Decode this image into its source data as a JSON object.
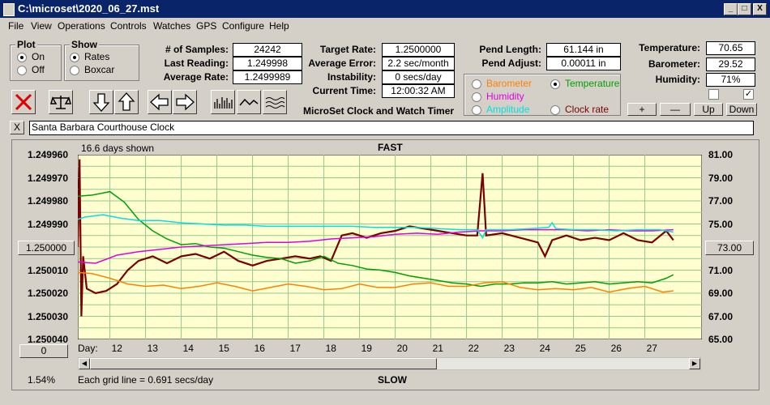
{
  "window": {
    "title": "C:\\microset\\2020_06_27.mst",
    "min": "_",
    "max": "□",
    "close": "X"
  },
  "menu": [
    "File",
    "View",
    "Operations",
    "Controls",
    "Watches",
    "GPS",
    "Configure",
    "Help"
  ],
  "plot_group": {
    "title": "Plot",
    "on": "On",
    "off": "Off",
    "selected": "On"
  },
  "show_group": {
    "title": "Show",
    "rates": "Rates",
    "boxcar": "Boxcar",
    "selected": "Rates"
  },
  "stats": {
    "samples_label": "# of Samples:",
    "samples": "24242",
    "last_label": "Last Reading:",
    "last": "1.249998",
    "avg_label": "Average Rate:",
    "avg": "1.2499989",
    "target_label": "Target Rate:",
    "target": "1.2500000",
    "err_label": "Average Error:",
    "err": "2.2 sec/month",
    "inst_label": "Instability:",
    "inst": "0 secs/day",
    "time_label": "Current Time:",
    "time": "12:00:32 AM",
    "app_name": "MicroSet Clock and Watch Timer",
    "pend_len_label": "Pend Length:",
    "pend_len": "61.144 in",
    "pend_adj_label": "Pend Adjust:",
    "pend_adj": "0.00011 in",
    "temp_label": "Temperature:",
    "temp": "70.65",
    "baro_label": "Barometer:",
    "baro": "29.52",
    "hum_label": "Humidity:",
    "hum": "71%"
  },
  "overlay_options": {
    "barometer": "Barometer",
    "temperature": "Temperature",
    "humidity": "Humidity",
    "amplitude": "Amplitude",
    "clock_rate": "Clock rate",
    "selected": "Temperature"
  },
  "adjust_buttons": {
    "plus": "+",
    "minus": "—",
    "up": "Up",
    "down": "Down"
  },
  "checkboxes": {
    "left": "",
    "right": "✓"
  },
  "description": {
    "close": "X",
    "text": "Santa Barbara Courthouse Clock"
  },
  "colors": {
    "barometer": "#ff8000",
    "temperature": "#00a000",
    "humidity": "#e000e0",
    "amplitude": "#00e0e0",
    "rate": "#7a0000",
    "plot_bg": "#ffffd0",
    "grid": "#90c890"
  },
  "chart_data": {
    "type": "line",
    "top_label": "FAST",
    "bottom_label": "SLOW",
    "days_shown": "16.6 days shown",
    "grid_note": "Each grid line = 0.691 secs/day",
    "percent": "1.54%",
    "zero_button": "0",
    "left_center_button": "1.250000",
    "right_center_button": "73.00",
    "x_prefix": "Day:",
    "x_days": [
      "12",
      "13",
      "14",
      "15",
      "16",
      "17",
      "18",
      "19",
      "20",
      "21",
      "22",
      "23",
      "24",
      "25",
      "26",
      "27"
    ],
    "left_axis": {
      "ticks": [
        "1.249960",
        "1.249970",
        "1.249980",
        "1.249990",
        "1.250000",
        "1.250010",
        "1.250020",
        "1.250030",
        "1.250040"
      ],
      "min": 1.24996,
      "max": 1.25004
    },
    "right_axis": {
      "ticks": [
        "81.00",
        "79.00",
        "77.00",
        "75.00",
        "73.00",
        "71.00",
        "69.00",
        "67.00",
        "65.00"
      ],
      "min": 65,
      "max": 81
    },
    "x_range": [
      11.1,
      28.6
    ],
    "series": [
      {
        "key": "rate",
        "points": [
          [
            11.1,
            1.25
          ],
          [
            11.15,
            1.249962
          ],
          [
            11.2,
            1.25003
          ],
          [
            11.25,
            1.250004
          ],
          [
            11.35,
            1.250018
          ],
          [
            11.6,
            1.25002
          ],
          [
            11.9,
            1.250019
          ],
          [
            12.2,
            1.250016
          ],
          [
            12.5,
            1.25001
          ],
          [
            12.8,
            1.250006
          ],
          [
            13.2,
            1.250004
          ],
          [
            13.6,
            1.250007
          ],
          [
            14.0,
            1.250004
          ],
          [
            14.4,
            1.250003
          ],
          [
            14.8,
            1.250005
          ],
          [
            15.2,
            1.250002
          ],
          [
            15.6,
            1.250006
          ],
          [
            16.0,
            1.250008
          ],
          [
            16.4,
            1.250006
          ],
          [
            16.8,
            1.250005
          ],
          [
            17.2,
            1.250004
          ],
          [
            17.6,
            1.250005
          ],
          [
            17.9,
            1.250004
          ],
          [
            18.2,
            1.250006
          ],
          [
            18.5,
            1.249995
          ],
          [
            18.8,
            1.249994
          ],
          [
            19.2,
            1.249996
          ],
          [
            19.6,
            1.249994
          ],
          [
            20.0,
            1.249993
          ],
          [
            20.4,
            1.249991
          ],
          [
            20.8,
            1.249992
          ],
          [
            21.2,
            1.249993
          ],
          [
            21.6,
            1.249994
          ],
          [
            22.0,
            1.249995
          ],
          [
            22.3,
            1.249995
          ],
          [
            22.45,
            1.249968
          ],
          [
            22.55,
            1.249995
          ],
          [
            23.0,
            1.249994
          ],
          [
            23.5,
            1.249996
          ],
          [
            24.0,
            1.249998
          ],
          [
            24.2,
            1.250004
          ],
          [
            24.4,
            1.249997
          ],
          [
            24.8,
            1.249995
          ],
          [
            25.2,
            1.249997
          ],
          [
            25.6,
            1.249996
          ],
          [
            26.0,
            1.249997
          ],
          [
            26.4,
            1.249994
          ],
          [
            26.8,
            1.249997
          ],
          [
            27.2,
            1.249998
          ],
          [
            27.6,
            1.249993
          ],
          [
            27.8,
            1.249997
          ]
        ]
      },
      {
        "key": "temperature",
        "points": [
          [
            11.1,
            77.4
          ],
          [
            11.5,
            77.5
          ],
          [
            12.0,
            77.8
          ],
          [
            12.4,
            76.9
          ],
          [
            12.8,
            75.4
          ],
          [
            13.2,
            74.4
          ],
          [
            13.6,
            73.7
          ],
          [
            14.0,
            73.2
          ],
          [
            14.4,
            73.3
          ],
          [
            14.8,
            73.0
          ],
          [
            15.2,
            72.9
          ],
          [
            15.6,
            72.6
          ],
          [
            16.0,
            72.3
          ],
          [
            16.4,
            72.1
          ],
          [
            16.8,
            72.0
          ],
          [
            17.2,
            71.6
          ],
          [
            17.6,
            71.8
          ],
          [
            18.0,
            72.2
          ],
          [
            18.4,
            71.6
          ],
          [
            18.8,
            71.4
          ],
          [
            19.2,
            71.1
          ],
          [
            19.6,
            71.0
          ],
          [
            20.0,
            70.8
          ],
          [
            20.4,
            70.5
          ],
          [
            20.8,
            70.3
          ],
          [
            21.2,
            70.1
          ],
          [
            21.6,
            69.9
          ],
          [
            22.0,
            69.8
          ],
          [
            22.4,
            69.6
          ],
          [
            22.8,
            69.8
          ],
          [
            23.2,
            69.8
          ],
          [
            23.6,
            69.9
          ],
          [
            24.0,
            69.9
          ],
          [
            24.4,
            70.0
          ],
          [
            24.8,
            69.8
          ],
          [
            25.2,
            69.9
          ],
          [
            25.6,
            70.0
          ],
          [
            26.0,
            69.8
          ],
          [
            26.4,
            69.9
          ],
          [
            26.8,
            70.0
          ],
          [
            27.2,
            69.9
          ],
          [
            27.6,
            70.3
          ],
          [
            27.8,
            70.6
          ]
        ]
      },
      {
        "key": "humidity",
        "points": [
          [
            11.1,
            71.7
          ],
          [
            11.6,
            71.6
          ],
          [
            12.2,
            72.3
          ],
          [
            12.8,
            72.6
          ],
          [
            13.4,
            72.8
          ],
          [
            14.0,
            73.0
          ],
          [
            14.6,
            73.1
          ],
          [
            15.2,
            73.2
          ],
          [
            15.8,
            73.3
          ],
          [
            16.4,
            73.4
          ],
          [
            17.0,
            73.4
          ],
          [
            17.6,
            73.5
          ],
          [
            18.2,
            73.7
          ],
          [
            18.8,
            73.8
          ],
          [
            19.4,
            73.9
          ],
          [
            20.0,
            74.1
          ],
          [
            20.6,
            74.2
          ],
          [
            21.2,
            74.1
          ],
          [
            21.8,
            74.3
          ],
          [
            22.4,
            74.4
          ],
          [
            23.0,
            74.4
          ],
          [
            23.6,
            74.5
          ],
          [
            24.2,
            74.5
          ],
          [
            24.8,
            74.5
          ],
          [
            25.4,
            74.4
          ],
          [
            26.0,
            74.5
          ],
          [
            26.6,
            74.4
          ],
          [
            27.2,
            74.4
          ],
          [
            27.8,
            74.5
          ]
        ]
      },
      {
        "key": "amplitude",
        "points": [
          [
            11.1,
            75.4
          ],
          [
            11.3,
            75.6
          ],
          [
            11.8,
            75.8
          ],
          [
            12.3,
            75.5
          ],
          [
            12.8,
            75.3
          ],
          [
            13.4,
            75.3
          ],
          [
            14.0,
            75.1
          ],
          [
            14.6,
            75.0
          ],
          [
            15.2,
            74.9
          ],
          [
            15.8,
            74.9
          ],
          [
            16.4,
            74.8
          ],
          [
            17.0,
            74.8
          ],
          [
            17.6,
            74.8
          ],
          [
            18.2,
            74.8
          ],
          [
            18.8,
            74.8
          ],
          [
            19.4,
            74.7
          ],
          [
            20.0,
            74.7
          ],
          [
            20.6,
            74.7
          ],
          [
            21.2,
            74.6
          ],
          [
            21.8,
            74.5
          ],
          [
            22.3,
            74.5
          ],
          [
            22.45,
            73.8
          ],
          [
            22.55,
            74.5
          ],
          [
            23.2,
            74.5
          ],
          [
            23.8,
            74.6
          ],
          [
            24.3,
            74.7
          ],
          [
            24.4,
            75.1
          ],
          [
            24.5,
            74.6
          ],
          [
            25.0,
            74.5
          ],
          [
            25.6,
            74.5
          ],
          [
            26.2,
            74.4
          ],
          [
            26.8,
            74.5
          ],
          [
            27.4,
            74.5
          ],
          [
            27.8,
            74.3
          ]
        ]
      },
      {
        "key": "barometer",
        "points": [
          [
            11.1,
            70.8
          ],
          [
            11.5,
            70.7
          ],
          [
            12.0,
            70.3
          ],
          [
            12.5,
            69.8
          ],
          [
            13.0,
            69.6
          ],
          [
            13.5,
            69.7
          ],
          [
            14.0,
            69.4
          ],
          [
            14.5,
            69.6
          ],
          [
            15.0,
            69.9
          ],
          [
            15.5,
            69.6
          ],
          [
            16.0,
            69.2
          ],
          [
            16.5,
            69.5
          ],
          [
            17.0,
            69.8
          ],
          [
            17.5,
            69.6
          ],
          [
            18.0,
            69.3
          ],
          [
            18.5,
            69.4
          ],
          [
            19.0,
            69.8
          ],
          [
            19.5,
            69.5
          ],
          [
            20.0,
            69.5
          ],
          [
            20.5,
            69.8
          ],
          [
            21.0,
            69.9
          ],
          [
            21.5,
            69.6
          ],
          [
            22.0,
            69.6
          ],
          [
            22.5,
            69.9
          ],
          [
            23.0,
            70.0
          ],
          [
            23.5,
            69.5
          ],
          [
            24.0,
            69.3
          ],
          [
            24.5,
            69.4
          ],
          [
            25.0,
            69.3
          ],
          [
            25.5,
            69.5
          ],
          [
            26.0,
            69.1
          ],
          [
            26.5,
            69.4
          ],
          [
            27.0,
            69.6
          ],
          [
            27.5,
            69.1
          ],
          [
            27.8,
            69.2
          ]
        ]
      }
    ]
  }
}
